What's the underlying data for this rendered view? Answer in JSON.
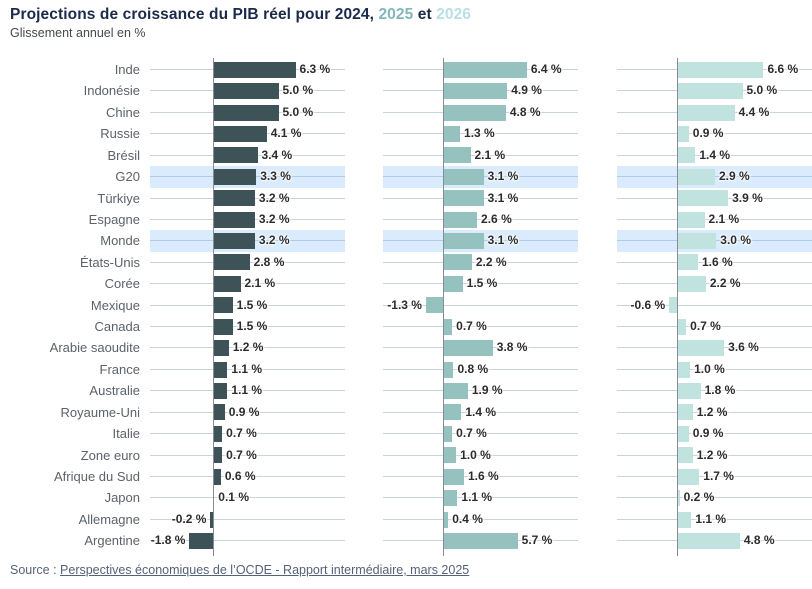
{
  "header": {
    "title_main": "Projections de croissance du PIB réel pour 2024, ",
    "title_2025": "2025",
    "title_et": " et ",
    "title_2026": "2026",
    "subtitle": "Glissement annuel en %"
  },
  "source": {
    "prefix": "Source : ",
    "link_text": "Perspectives économiques de l’OCDE - Rapport intermédiaire, mars 2025"
  },
  "colors": {
    "title_dark": "#1b2a4a",
    "accent_2025": "#82b8bc",
    "accent_2026": "#b8dfe3",
    "bar_2024": "#3d5358",
    "bar_2025": "#95c1bf",
    "bar_2026": "#c0e3e0",
    "highlight_row": "#d9ebfc",
    "gridline": "#c9d3de",
    "gridline_highlight": "#aecbe9",
    "axis_line": "#878d96",
    "label_text": "#5c6269",
    "value_text": "#2b2b2b",
    "source_text": "#55617a"
  },
  "chart_data": {
    "type": "bar",
    "orientation": "horizontal",
    "layout": "three side-by-side panels, one per year, shared category axis, gridlines on, value labels at bar ends",
    "value_suffix": " %",
    "xlim": [
      -4.6,
      10.2
    ],
    "categories": [
      "Inde",
      "Indonésie",
      "Chine",
      "Russie",
      "Brésil",
      "G20",
      "Türkiye",
      "Espagne",
      "Monde",
      "États-Unis",
      "Corée",
      "Mexique",
      "Canada",
      "Arabie saoudite",
      "France",
      "Australie",
      "Royaume-Uni",
      "Italie",
      "Zone euro",
      "Afrique du Sud",
      "Japon",
      "Allemagne",
      "Argentine"
    ],
    "highlighted_categories": [
      "G20",
      "Monde"
    ],
    "series": [
      {
        "name": "2024",
        "color": "#3d5358",
        "values": [
          6.3,
          5.0,
          5.0,
          4.1,
          3.4,
          3.3,
          3.2,
          3.2,
          3.2,
          2.8,
          2.1,
          1.5,
          1.5,
          1.2,
          1.1,
          1.1,
          0.9,
          0.7,
          0.7,
          0.6,
          0.1,
          -0.2,
          -1.8
        ]
      },
      {
        "name": "2025",
        "color": "#95c1bf",
        "values": [
          6.4,
          4.9,
          4.8,
          1.3,
          2.1,
          3.1,
          3.1,
          2.6,
          3.1,
          2.2,
          1.5,
          -1.3,
          0.7,
          3.8,
          0.8,
          1.9,
          1.4,
          0.7,
          1.0,
          1.6,
          1.1,
          0.4,
          5.7
        ]
      },
      {
        "name": "2026",
        "color": "#c0e3e0",
        "values": [
          6.6,
          5.0,
          4.4,
          0.9,
          1.4,
          2.9,
          3.9,
          2.1,
          3.0,
          1.6,
          2.2,
          -0.6,
          0.7,
          3.6,
          1.0,
          1.8,
          1.2,
          0.9,
          1.2,
          1.7,
          0.2,
          1.1,
          4.8
        ]
      }
    ]
  }
}
